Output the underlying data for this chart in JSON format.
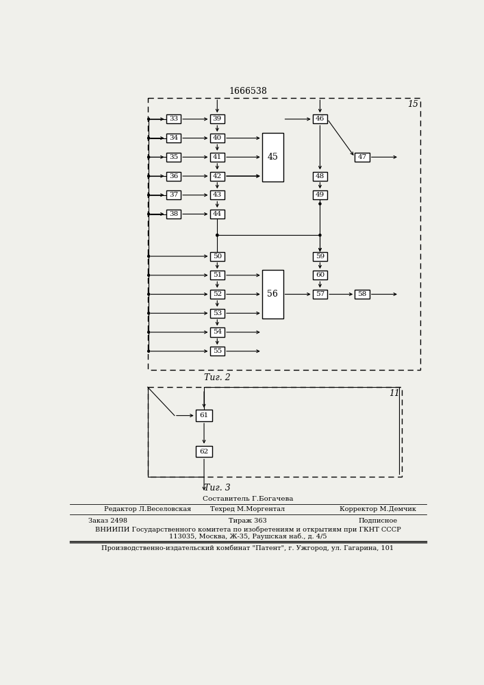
{
  "title": "1666538",
  "label_15": "15",
  "label_11": "11",
  "fig2_caption": "Τиг. 2",
  "fig3_caption": "Τиг. 3",
  "sestavitel": "Составитель Г.Богачева",
  "editor": "Редактор Л.Веселовская",
  "tehred": "Техред М.Моргентал",
  "korrektor": "Корректор М.Демчик",
  "zakaz": "Заказ 2498",
  "tirazh": "Тираж 363",
  "podpisnoe": "Подписное",
  "vniiipi": "ВНИИПИ Государственного комитета по изобретениям и открытиям при ГКНТ СССР",
  "address": "113035, Москва, Ж-35, Раушская наб., д. 4/5",
  "patent": "Производственно-издательский комбинат \"Патент\", г. Ужгород, ул. Гагарина, 101",
  "bg_color": "#f0f0eb"
}
